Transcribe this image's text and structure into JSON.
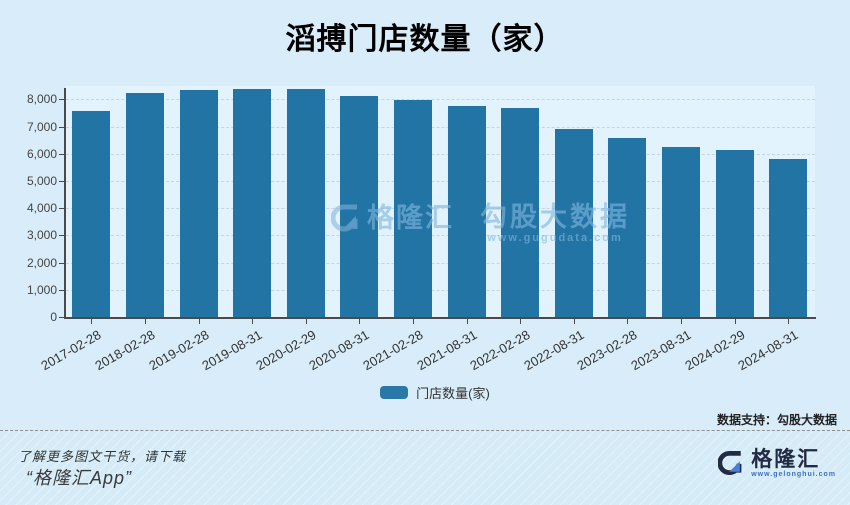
{
  "chart": {
    "title": "滔搏门店数量（家）",
    "legend_label": "门店数量(家)",
    "data_support": "数据支持：勾股大数据"
  },
  "chart_data": {
    "type": "bar",
    "title": "滔搏门店数量（家）",
    "categories": [
      "2017-02-28",
      "2018-02-28",
      "2019-02-28",
      "2019-08-31",
      "2020-02-29",
      "2020-08-31",
      "2021-02-28",
      "2021-08-31",
      "2022-02-28",
      "2022-08-31",
      "2023-02-28",
      "2023-08-31",
      "2024-02-29",
      "2024-08-31"
    ],
    "values": [
      7560,
      8250,
      8343,
      8372,
      8395,
      8108,
      7991,
      7771,
      7695,
      6921,
      6565,
      6235,
      6144,
      5813
    ],
    "series_name": "门店数量(家)",
    "xlabel": "",
    "ylabel": "",
    "ylim": [
      0,
      8000
    ],
    "y_tick_step": 1000,
    "y_tick_labels": [
      "0",
      "1,000",
      "2,000",
      "3,000",
      "4,000",
      "5,000",
      "6,000",
      "7,000",
      "8,000"
    ],
    "grid": true,
    "grid_style": "dashed",
    "legend_position": "bottom",
    "bar_color": "#2274a4"
  },
  "watermark": {
    "brand": "格隆汇",
    "text": "勾股大数据",
    "url": "www.gugudata.com"
  },
  "footer": {
    "promo_line1": "了解更多图文干货，请下载",
    "promo_line2": "“格隆汇App”",
    "logo_text": "格隆汇",
    "logo_url": "www.gelonghui.com"
  },
  "colors": {
    "background": "#d8edf9",
    "plot_background": "#e2f3fd",
    "bar": "#2274a4",
    "axis": "#4a4a4a",
    "watermark_blue": "#7fb4de",
    "brand_navy": "#232b44",
    "brand_blue": "#4b7fd6"
  }
}
